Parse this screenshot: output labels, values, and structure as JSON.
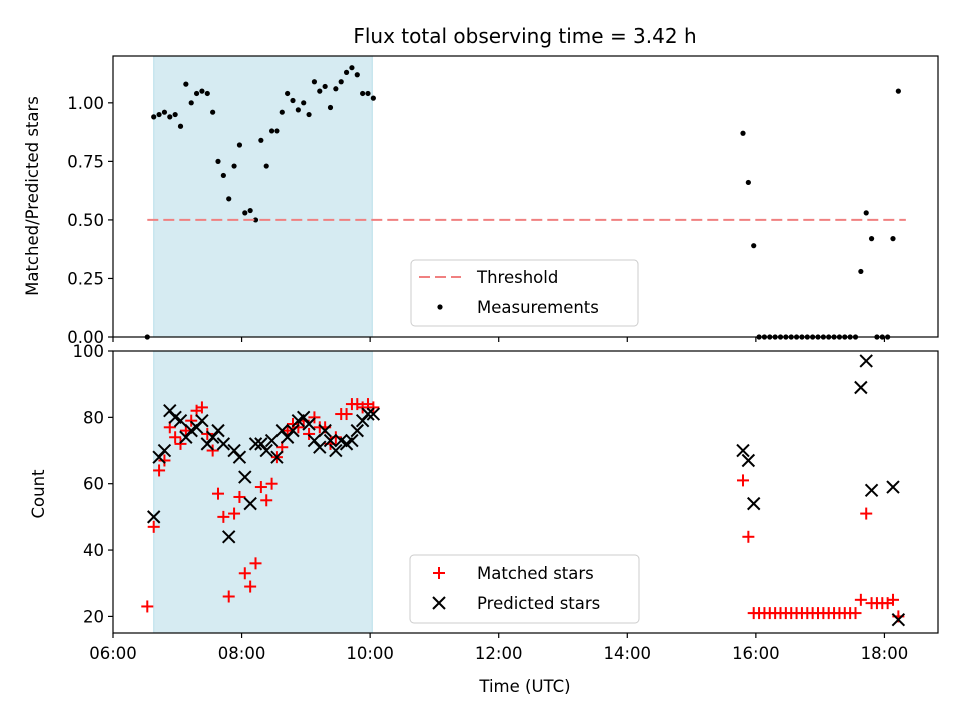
{
  "chart_data": [
    {
      "type": "scatter",
      "title": "Flux total observing time = 3.42 h",
      "xlabel": "",
      "ylabel": "Matched/Predicted stars",
      "xlim": [
        "06:00",
        "18:50"
      ],
      "ylim": [
        0,
        1.2
      ],
      "xticks": [
        "06:00",
        "08:00",
        "10:00",
        "12:00",
        "14:00",
        "16:00",
        "18:00"
      ],
      "yticks": [
        "0.00",
        "0.25",
        "0.50",
        "0.75",
        "1.00"
      ],
      "shaded_interval": [
        "06:38",
        "10:02"
      ],
      "shade_color": "#add8e6",
      "legend_position": "lower center",
      "legend": [
        "Threshold",
        "Measurements"
      ],
      "threshold": {
        "name": "Threshold",
        "y": 0.5,
        "x_range": [
          "06:32",
          "18:20"
        ],
        "color": "#f08080",
        "style": "dashed"
      },
      "series": [
        {
          "name": "Measurements",
          "color": "#000000",
          "marker": "dot",
          "points": [
            [
              "06:32",
              0.0
            ],
            [
              "06:38",
              0.94
            ],
            [
              "06:43",
              0.95
            ],
            [
              "06:48",
              0.96
            ],
            [
              "06:53",
              0.94
            ],
            [
              "06:58",
              0.95
            ],
            [
              "07:03",
              0.9
            ],
            [
              "07:08",
              1.08
            ],
            [
              "07:13",
              1.0
            ],
            [
              "07:18",
              1.04
            ],
            [
              "07:23",
              1.05
            ],
            [
              "07:28",
              1.04
            ],
            [
              "07:33",
              0.96
            ],
            [
              "07:38",
              0.75
            ],
            [
              "07:43",
              0.69
            ],
            [
              "07:48",
              0.59
            ],
            [
              "07:53",
              0.73
            ],
            [
              "07:58",
              0.82
            ],
            [
              "08:03",
              0.53
            ],
            [
              "08:08",
              0.54
            ],
            [
              "08:13",
              0.5
            ],
            [
              "08:18",
              0.84
            ],
            [
              "08:23",
              0.73
            ],
            [
              "08:28",
              0.88
            ],
            [
              "08:33",
              0.88
            ],
            [
              "08:38",
              0.96
            ],
            [
              "08:43",
              1.04
            ],
            [
              "08:48",
              1.01
            ],
            [
              "08:53",
              0.97
            ],
            [
              "08:58",
              1.0
            ],
            [
              "09:03",
              0.95
            ],
            [
              "09:08",
              1.09
            ],
            [
              "09:13",
              1.05
            ],
            [
              "09:18",
              1.07
            ],
            [
              "09:23",
              0.98
            ],
            [
              "09:28",
              1.06
            ],
            [
              "09:33",
              1.09
            ],
            [
              "09:38",
              1.13
            ],
            [
              "09:43",
              1.15
            ],
            [
              "09:48",
              1.12
            ],
            [
              "09:53",
              1.04
            ],
            [
              "09:58",
              1.04
            ],
            [
              "10:03",
              1.02
            ],
            [
              "15:48",
              0.87
            ],
            [
              "15:53",
              0.66
            ],
            [
              "15:58",
              0.39
            ],
            [
              "16:03",
              0.0
            ],
            [
              "16:08",
              0.0
            ],
            [
              "16:13",
              0.0
            ],
            [
              "16:18",
              0.0
            ],
            [
              "16:23",
              0.0
            ],
            [
              "16:28",
              0.0
            ],
            [
              "16:33",
              0.0
            ],
            [
              "16:38",
              0.0
            ],
            [
              "16:43",
              0.0
            ],
            [
              "16:48",
              0.0
            ],
            [
              "16:53",
              0.0
            ],
            [
              "16:58",
              0.0
            ],
            [
              "17:03",
              0.0
            ],
            [
              "17:08",
              0.0
            ],
            [
              "17:13",
              0.0
            ],
            [
              "17:18",
              0.0
            ],
            [
              "17:23",
              0.0
            ],
            [
              "17:28",
              0.0
            ],
            [
              "17:33",
              0.0
            ],
            [
              "17:38",
              0.28
            ],
            [
              "17:43",
              0.53
            ],
            [
              "17:48",
              0.42
            ],
            [
              "17:53",
              0.0
            ],
            [
              "17:58",
              0.0
            ],
            [
              "18:03",
              0.0
            ],
            [
              "18:08",
              0.42
            ],
            [
              "18:13",
              1.05
            ]
          ]
        }
      ]
    },
    {
      "type": "scatter",
      "title": "",
      "xlabel": "Time (UTC)",
      "ylabel": "Count",
      "xlim": [
        "06:00",
        "18:50"
      ],
      "ylim": [
        15,
        100
      ],
      "xticks": [
        "06:00",
        "08:00",
        "10:00",
        "12:00",
        "14:00",
        "16:00",
        "18:00"
      ],
      "yticks": [
        "20",
        "40",
        "60",
        "80",
        "100"
      ],
      "shaded_interval": [
        "06:38",
        "10:02"
      ],
      "shade_color": "#add8e6",
      "legend_position": "lower center",
      "series": [
        {
          "name": "Matched stars",
          "color": "#ff0000",
          "marker": "plus",
          "points": [
            [
              "06:32",
              23
            ],
            [
              "06:38",
              47
            ],
            [
              "06:43",
              64
            ],
            [
              "06:48",
              67
            ],
            [
              "06:53",
              77
            ],
            [
              "06:58",
              74
            ],
            [
              "07:03",
              72
            ],
            [
              "07:08",
              76
            ],
            [
              "07:13",
              79
            ],
            [
              "07:18",
              82
            ],
            [
              "07:23",
              83
            ],
            [
              "07:28",
              75
            ],
            [
              "07:33",
              70
            ],
            [
              "07:38",
              57
            ],
            [
              "07:43",
              50
            ],
            [
              "07:48",
              26
            ],
            [
              "07:53",
              51
            ],
            [
              "07:58",
              56
            ],
            [
              "08:03",
              33
            ],
            [
              "08:08",
              29
            ],
            [
              "08:13",
              36
            ],
            [
              "08:18",
              59
            ],
            [
              "08:23",
              55
            ],
            [
              "08:28",
              60
            ],
            [
              "08:33",
              68
            ],
            [
              "08:38",
              71
            ],
            [
              "08:43",
              76
            ],
            [
              "08:48",
              78
            ],
            [
              "08:53",
              77
            ],
            [
              "08:58",
              79
            ],
            [
              "09:03",
              75
            ],
            [
              "09:08",
              80
            ],
            [
              "09:13",
              77
            ],
            [
              "09:18",
              77
            ],
            [
              "09:23",
              72
            ],
            [
              "09:28",
              74
            ],
            [
              "09:33",
              81
            ],
            [
              "09:38",
              81
            ],
            [
              "09:43",
              84
            ],
            [
              "09:48",
              84
            ],
            [
              "09:53",
              83
            ],
            [
              "09:58",
              84
            ],
            [
              "10:03",
              83
            ],
            [
              "15:48",
              61
            ],
            [
              "15:53",
              44
            ],
            [
              "15:58",
              21
            ],
            [
              "16:03",
              21
            ],
            [
              "16:08",
              21
            ],
            [
              "16:13",
              21
            ],
            [
              "16:18",
              21
            ],
            [
              "16:23",
              21
            ],
            [
              "16:28",
              21
            ],
            [
              "16:33",
              21
            ],
            [
              "16:38",
              21
            ],
            [
              "16:43",
              21
            ],
            [
              "16:48",
              21
            ],
            [
              "16:53",
              21
            ],
            [
              "16:58",
              21
            ],
            [
              "17:03",
              21
            ],
            [
              "17:08",
              21
            ],
            [
              "17:13",
              21
            ],
            [
              "17:18",
              21
            ],
            [
              "17:23",
              21
            ],
            [
              "17:28",
              21
            ],
            [
              "17:33",
              21
            ],
            [
              "17:38",
              25
            ],
            [
              "17:43",
              51
            ],
            [
              "17:48",
              24
            ],
            [
              "17:53",
              24
            ],
            [
              "17:58",
              24
            ],
            [
              "18:03",
              24
            ],
            [
              "18:08",
              25
            ],
            [
              "18:13",
              20
            ]
          ]
        },
        {
          "name": "Predicted stars",
          "color": "#000000",
          "marker": "x",
          "points": [
            [
              "06:38",
              50
            ],
            [
              "06:43",
              68
            ],
            [
              "06:48",
              70
            ],
            [
              "06:53",
              82
            ],
            [
              "06:58",
              80
            ],
            [
              "07:03",
              79
            ],
            [
              "07:08",
              74
            ],
            [
              "07:13",
              76
            ],
            [
              "07:18",
              77
            ],
            [
              "07:23",
              79
            ],
            [
              "07:28",
              72
            ],
            [
              "07:33",
              74
            ],
            [
              "07:38",
              76
            ],
            [
              "07:43",
              72
            ],
            [
              "07:48",
              44
            ],
            [
              "07:53",
              70
            ],
            [
              "07:58",
              68
            ],
            [
              "08:03",
              62
            ],
            [
              "08:08",
              54
            ],
            [
              "08:13",
              72
            ],
            [
              "08:18",
              72
            ],
            [
              "08:23",
              70
            ],
            [
              "08:28",
              73
            ],
            [
              "08:33",
              68
            ],
            [
              "08:38",
              76
            ],
            [
              "08:43",
              74
            ],
            [
              "08:48",
              76
            ],
            [
              "08:53",
              79
            ],
            [
              "08:58",
              80
            ],
            [
              "09:03",
              78
            ],
            [
              "09:08",
              73
            ],
            [
              "09:13",
              71
            ],
            [
              "09:18",
              76
            ],
            [
              "09:23",
              73
            ],
            [
              "09:28",
              70
            ],
            [
              "09:33",
              73
            ],
            [
              "09:38",
              72
            ],
            [
              "09:43",
              73
            ],
            [
              "09:48",
              76
            ],
            [
              "09:53",
              79
            ],
            [
              "09:58",
              81
            ],
            [
              "10:03",
              81
            ],
            [
              "15:48",
              70
            ],
            [
              "15:53",
              67
            ],
            [
              "15:58",
              54
            ],
            [
              "17:38",
              89
            ],
            [
              "17:43",
              97
            ],
            [
              "17:48",
              58
            ],
            [
              "18:08",
              59
            ],
            [
              "18:13",
              19
            ]
          ]
        }
      ]
    }
  ]
}
